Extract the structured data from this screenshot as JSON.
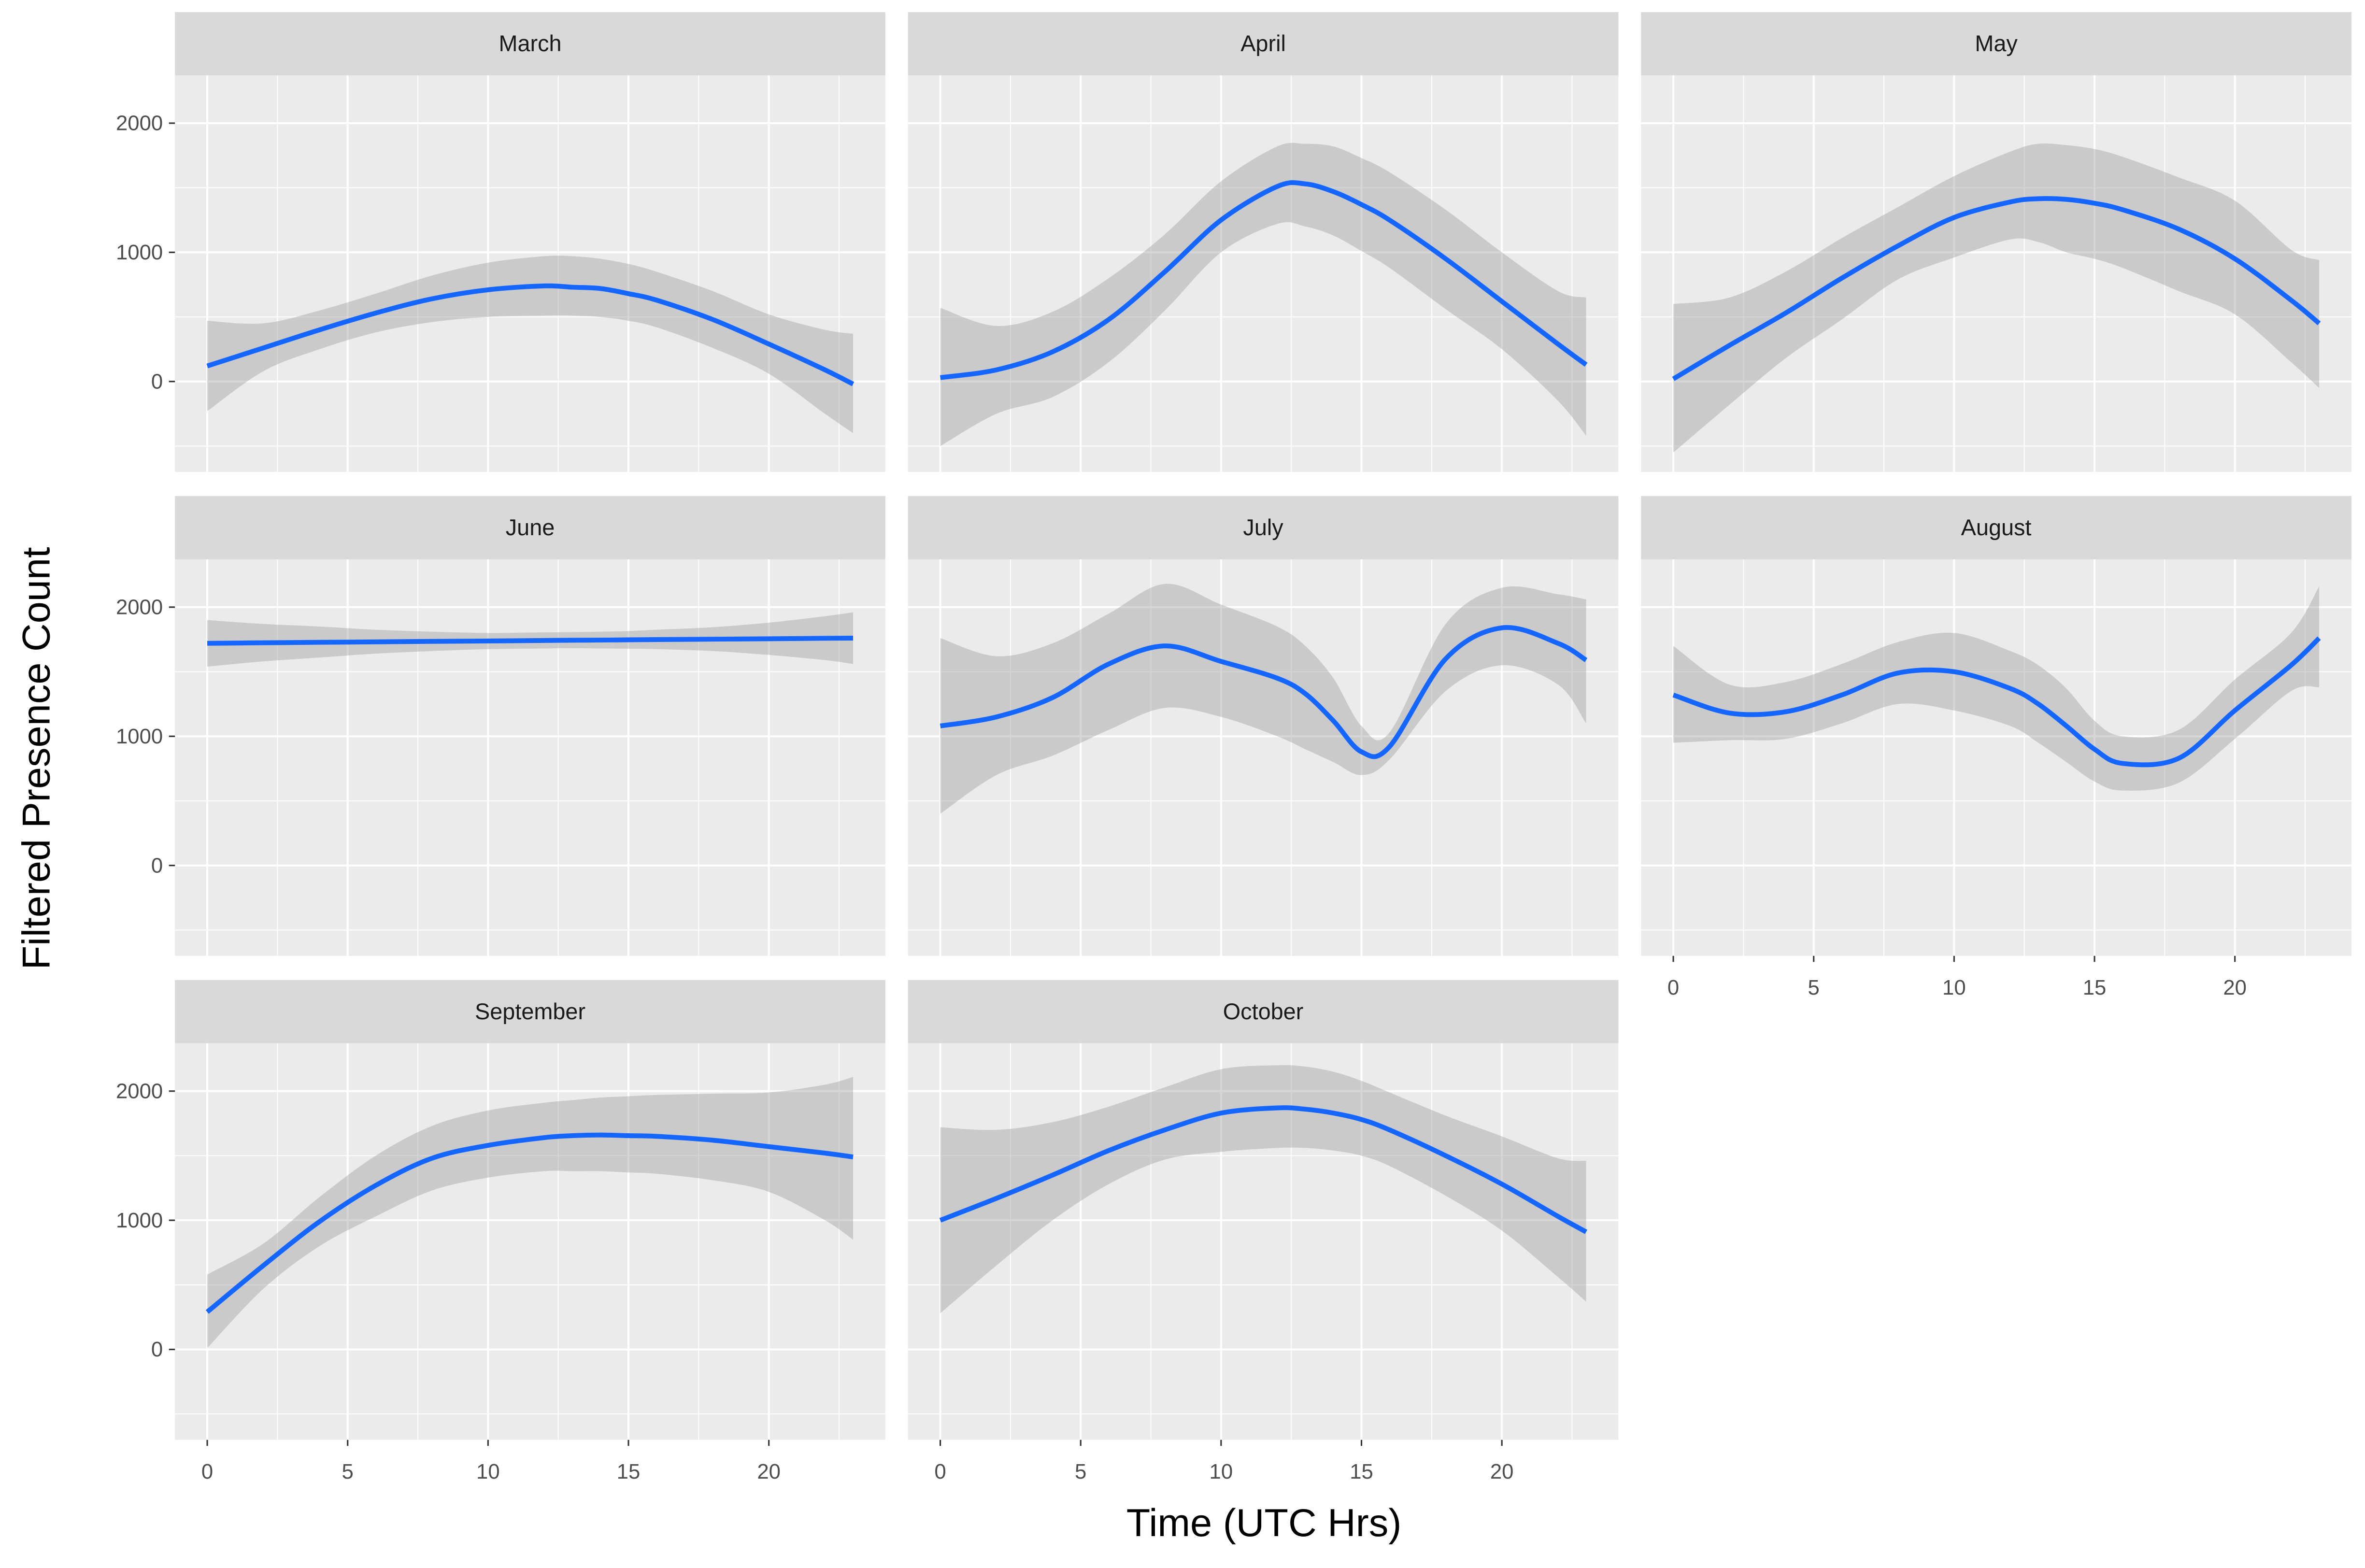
{
  "chart_data": {
    "type": "line",
    "x_label": "Time (UTC Hrs)",
    "y_label": "Filtered Presence Count",
    "xlim": [
      -1.15,
      24.15
    ],
    "xticks": [
      0,
      5,
      10,
      15,
      20
    ],
    "ylim": [
      -700,
      2370
    ],
    "yticks": [
      0,
      1000,
      2000
    ],
    "grid": true,
    "color": "#1565ff",
    "band_color": "#999999",
    "x": [
      0,
      2,
      4,
      6,
      8,
      10,
      12,
      13,
      14,
      15,
      16,
      18,
      20,
      22,
      23
    ],
    "panels": [
      {
        "title": "March",
        "values": [
          120,
          260,
          400,
          530,
          640,
          710,
          740,
          730,
          720,
          680,
          630,
          480,
          290,
          90,
          -20
        ],
        "lower": [
          -230,
          80,
          250,
          380,
          460,
          500,
          510,
          510,
          500,
          470,
          420,
          260,
          60,
          -250,
          -400
        ],
        "upper": [
          470,
          450,
          550,
          680,
          820,
          920,
          970,
          970,
          950,
          910,
          850,
          700,
          520,
          400,
          370
        ]
      },
      {
        "title": "April",
        "values": [
          30,
          90,
          230,
          480,
          850,
          1250,
          1510,
          1530,
          1470,
          1370,
          1250,
          950,
          620,
          290,
          130
        ],
        "lower": [
          -500,
          -250,
          -120,
          150,
          550,
          1000,
          1220,
          1200,
          1130,
          1010,
          880,
          560,
          250,
          -150,
          -420
        ],
        "upper": [
          570,
          430,
          540,
          800,
          1140,
          1550,
          1820,
          1840,
          1820,
          1730,
          1620,
          1330,
          1000,
          700,
          650
        ]
      },
      {
        "title": "May",
        "values": [
          20,
          280,
          530,
          800,
          1050,
          1270,
          1390,
          1415,
          1410,
          1380,
          1330,
          1180,
          950,
          630,
          450
        ],
        "lower": [
          -550,
          -180,
          180,
          480,
          790,
          960,
          1100,
          1080,
          1000,
          950,
          880,
          700,
          520,
          150,
          -50
        ],
        "upper": [
          600,
          650,
          850,
          1110,
          1350,
          1590,
          1780,
          1840,
          1830,
          1800,
          1740,
          1580,
          1400,
          1020,
          940
        ]
      },
      {
        "title": "June",
        "values": [
          1720,
          1724,
          1728,
          1731,
          1735,
          1738,
          1742,
          1744,
          1745,
          1747,
          1749,
          1752,
          1755,
          1759,
          1760
        ],
        "lower": [
          1540,
          1580,
          1610,
          1640,
          1660,
          1675,
          1680,
          1682,
          1680,
          1678,
          1675,
          1660,
          1630,
          1590,
          1560
        ],
        "upper": [
          1900,
          1870,
          1850,
          1825,
          1810,
          1800,
          1805,
          1807,
          1810,
          1815,
          1825,
          1845,
          1880,
          1930,
          1960
        ]
      },
      {
        "title": "July",
        "values": [
          1080,
          1150,
          1300,
          1560,
          1700,
          1580,
          1450,
          1330,
          1120,
          880,
          920,
          1600,
          1840,
          1720,
          1590
        ],
        "lower": [
          400,
          700,
          850,
          1050,
          1220,
          1150,
          1000,
          900,
          800,
          700,
          820,
          1350,
          1550,
          1400,
          1100
        ],
        "upper": [
          1760,
          1620,
          1720,
          1950,
          2180,
          2020,
          1850,
          1700,
          1450,
          1080,
          1030,
          1870,
          2150,
          2100,
          2060
        ]
      },
      {
        "title": "August",
        "values": [
          1320,
          1180,
          1190,
          1320,
          1490,
          1500,
          1370,
          1250,
          1080,
          900,
          790,
          830,
          1200,
          1550,
          1760
        ],
        "lower": [
          950,
          970,
          980,
          1100,
          1250,
          1200,
          1080,
          950,
          800,
          650,
          580,
          640,
          980,
          1350,
          1380
        ],
        "upper": [
          1700,
          1400,
          1420,
          1560,
          1730,
          1800,
          1660,
          1550,
          1370,
          1120,
          1000,
          1050,
          1440,
          1800,
          2160
        ]
      },
      {
        "title": "September",
        "values": [
          290,
          650,
          990,
          1270,
          1480,
          1580,
          1640,
          1655,
          1660,
          1655,
          1650,
          1620,
          1570,
          1520,
          1490
        ],
        "lower": [
          10,
          470,
          800,
          1030,
          1230,
          1330,
          1380,
          1380,
          1380,
          1370,
          1360,
          1310,
          1220,
          1000,
          850
        ],
        "upper": [
          580,
          820,
          1180,
          1500,
          1730,
          1850,
          1910,
          1930,
          1950,
          1960,
          1970,
          1980,
          1990,
          2050,
          2110
        ]
      },
      {
        "title": "October",
        "values": [
          1000,
          1170,
          1350,
          1540,
          1700,
          1830,
          1870,
          1860,
          1830,
          1780,
          1700,
          1500,
          1280,
          1030,
          910
        ],
        "lower": [
          280,
          650,
          1000,
          1280,
          1470,
          1530,
          1560,
          1560,
          1540,
          1500,
          1420,
          1190,
          920,
          560,
          370
        ],
        "upper": [
          1720,
          1700,
          1760,
          1880,
          2030,
          2170,
          2200,
          2190,
          2150,
          2080,
          1990,
          1810,
          1650,
          1480,
          1460
        ]
      }
    ]
  }
}
